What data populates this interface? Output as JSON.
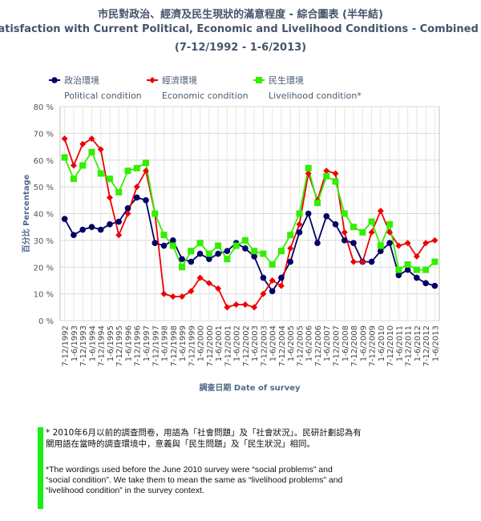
{
  "header": {
    "title_zh": "市民對政治、經濟及民生現狀的滿意程度 - 綜合圖表 (半年結)",
    "title_en": "Satisfaction with Current Political, Economic and Livelihood Conditions - Combined Charts (half-yearly)",
    "period": "(7-12/1992 - 1-6/2013)"
  },
  "chart_data": {
    "type": "line",
    "ylabel": "百分比 Percentage",
    "xlabel": "調查日期 Date of survey",
    "ylim": [
      0,
      80
    ],
    "yticks": [
      "0 %",
      "10 %",
      "20 %",
      "30 %",
      "40 %",
      "50 %",
      "60 %",
      "70 %",
      "80 %"
    ],
    "ytick_values": [
      0,
      10,
      20,
      30,
      40,
      50,
      60,
      70,
      80
    ],
    "grid": true,
    "legend_position": "top",
    "x": [
      "7-12/1992",
      "1-6/1993",
      "7-12/1993",
      "1-6/1994",
      "7-12/1994",
      "1-6/1995",
      "7-12/1995",
      "1-6/1996",
      "7-12/1996",
      "1-6/1997",
      "7-12/1997",
      "1-6/1998",
      "7-12/1998",
      "1-6/1999",
      "7-12/1999",
      "1-6/2000",
      "7-12/2000",
      "1-6/2001",
      "7-12/2001",
      "1-6/2002",
      "7-12/2002",
      "1-6/2003",
      "7-12/2003",
      "1-6/2004",
      "7-12/2004",
      "1-6/2005",
      "7-12/2005",
      "1-6/2006",
      "7-12/2006",
      "1-6/2007",
      "7-12/2007",
      "1-6/2008",
      "7-12/2008",
      "1-6/2009",
      "7-12/2009",
      "1-6/2010",
      "7-12/2010",
      "1-6/2011",
      "7-12/2011",
      "1-6/2012",
      "7-12/2012",
      "1-6/2013"
    ],
    "series": [
      {
        "name": "政治環境",
        "name_en": "Political condition",
        "color": "#000066",
        "marker": "circle",
        "values": [
          38,
          32,
          34,
          35,
          34,
          36,
          37,
          42,
          46,
          45,
          29,
          28,
          30,
          23,
          22,
          25,
          23,
          25,
          26,
          29,
          27,
          24,
          16,
          11,
          16,
          22,
          33,
          40,
          29,
          39,
          36,
          30,
          29,
          22,
          22,
          26,
          29,
          17,
          19,
          16,
          14,
          13
        ]
      },
      {
        "name": "經濟環境",
        "name_en": "Economic condition",
        "color": "#ee0000",
        "marker": "diamond",
        "values": [
          68,
          58,
          66,
          68,
          64,
          46,
          32,
          40,
          50,
          56,
          40,
          10,
          9,
          9,
          11,
          16,
          14,
          12,
          5,
          6,
          6,
          5,
          10,
          15,
          13,
          27,
          36,
          55,
          45,
          56,
          55,
          33,
          22,
          22,
          33,
          41,
          33,
          28,
          29,
          24,
          29,
          30
        ]
      },
      {
        "name": "民生環境",
        "name_en": "Livelihood condition*",
        "color": "#33ee00",
        "marker": "square",
        "values": [
          61,
          53,
          58,
          63,
          55,
          53,
          48,
          56,
          57,
          59,
          40,
          32,
          28,
          20,
          26,
          29,
          25,
          28,
          23,
          28,
          30,
          26,
          25,
          21,
          26,
          32,
          40,
          57,
          44,
          54,
          52,
          40,
          35,
          33,
          37,
          28,
          36,
          19,
          21,
          19,
          19,
          22
        ]
      }
    ]
  },
  "note": {
    "zh": "* 2010年6月以前的調查問卷，用語為「社會問題」及「社會狀況」。民研計劃認為有關用語在當時的調查環境中，意義與「民生問題」及「民生狀況」相同。",
    "en": "*The wordings used before the June 2010 survey were “social problems” and “social condition”. We take them to mean the same as “livelihood problems” and “livelihood condition” in the survey context."
  }
}
